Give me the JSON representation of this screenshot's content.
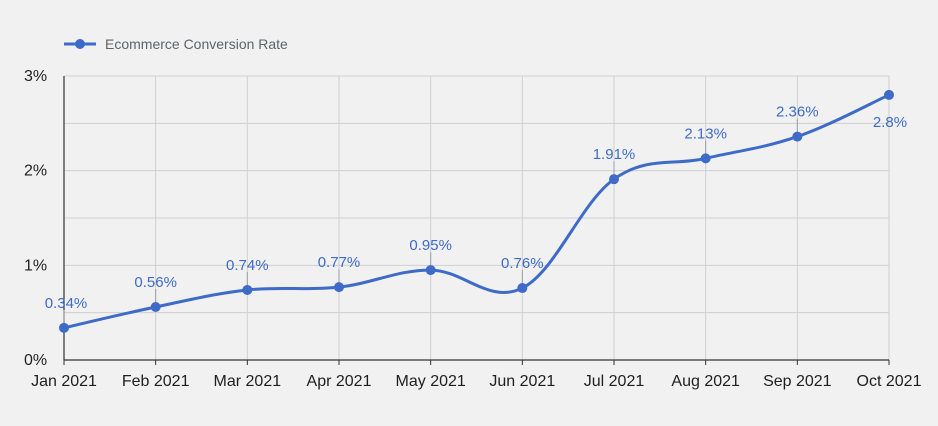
{
  "chart_data": {
    "type": "line",
    "title": "",
    "xlabel": "",
    "ylabel": "",
    "categories": [
      "Jan 2021",
      "Feb 2021",
      "Mar 2021",
      "Apr 2021",
      "May 2021",
      "Jun 2021",
      "Jul 2021",
      "Aug 2021",
      "Sep 2021",
      "Oct 2021"
    ],
    "series": [
      {
        "name": "Ecommerce Conversion Rate",
        "values": [
          0.34,
          0.56,
          0.74,
          0.77,
          0.95,
          0.76,
          1.91,
          2.13,
          2.36,
          2.8
        ],
        "labels": [
          "0.34%",
          "0.56%",
          "0.74%",
          "0.77%",
          "0.95%",
          "0.76%",
          "1.91%",
          "2.13%",
          "2.36%",
          "2.8%"
        ]
      }
    ],
    "ylim": [
      0,
      3
    ],
    "yticks": [
      0,
      1,
      2,
      3
    ],
    "ytick_labels": [
      "0%",
      "1%",
      "2%",
      "3%"
    ],
    "grid": true,
    "legend": "top-left",
    "colors": {
      "line": "#3d6bc7",
      "grid": "#d0d0d0",
      "axis": "#333333",
      "background": "#f1f1f1"
    }
  }
}
